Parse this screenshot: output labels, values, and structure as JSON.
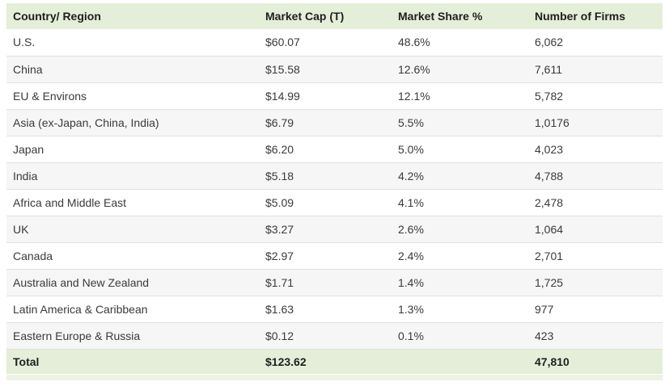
{
  "chart_data": {
    "type": "table",
    "columns": [
      "Country/ Region",
      "Market Cap (T)",
      "Market Share %",
      "Number of Firms"
    ],
    "rows": [
      [
        "U.S.",
        "$60.07",
        "48.6%",
        "6,062"
      ],
      [
        "China",
        "$15.58",
        "12.6%",
        "7,611"
      ],
      [
        "EU & Environs",
        "$14.99",
        "12.1%",
        "5,782"
      ],
      [
        "Asia (ex-Japan, China, India)",
        "$6.79",
        "5.5%",
        "1,0176"
      ],
      [
        "Japan",
        "$6.20",
        "5.0%",
        "4,023"
      ],
      [
        "India",
        "$5.18",
        "4.2%",
        "4,788"
      ],
      [
        "Africa and Middle East",
        "$5.09",
        "4.1%",
        "2,478"
      ],
      [
        "UK",
        "$3.27",
        "2.6%",
        "1,064"
      ],
      [
        "Canada",
        "$2.97",
        "2.4%",
        "2,701"
      ],
      [
        "Australia and New Zealand",
        "$1.71",
        "1.4%",
        "1,725"
      ],
      [
        "Latin America & Caribbean",
        "$1.63",
        "1.3%",
        "977"
      ],
      [
        "Eastern Europe & Russia",
        "$0.12",
        "0.1%",
        "423"
      ]
    ],
    "total_row": [
      "Total",
      "$123.62",
      "",
      "47,810"
    ]
  },
  "colors": {
    "header_bg": "#e4eed8",
    "total_bg": "#e4eed8",
    "alt_row_bg": "#f6f6f6",
    "row_border": "#e0e0e0",
    "header_text": "#1f1f1f",
    "cell_text": "#3a3a3a",
    "bottom_strip": "#edf3e2"
  }
}
